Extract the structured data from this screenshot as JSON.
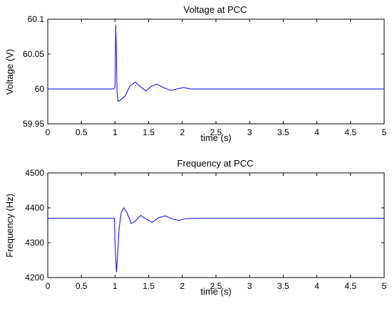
{
  "chart_data": [
    {
      "type": "line",
      "title": "Voltage at PCC",
      "xlabel": "time (s)",
      "ylabel": "Voltage (V)",
      "xlim": [
        0,
        5
      ],
      "ylim": [
        59.95,
        60.1
      ],
      "xticks": [
        "0",
        "0.5",
        "1",
        "1.5",
        "2",
        "2.5",
        "3",
        "3.5",
        "4",
        "4.5",
        "5"
      ],
      "yticks": [
        "59.95",
        "60",
        "60.05",
        "60.1"
      ],
      "grid": false,
      "legend": "none",
      "series": [
        {
          "color": "#0000ff",
          "x": [
            0,
            0.2,
            0.4,
            0.6,
            0.8,
            0.98,
            1.0,
            1.01,
            1.02,
            1.03,
            1.045,
            1.08,
            1.15,
            1.22,
            1.3,
            1.38,
            1.46,
            1.54,
            1.62,
            1.72,
            1.82,
            1.92,
            2.02,
            2.12,
            2.25,
            2.5,
            3.0,
            3.5,
            4.0,
            4.5,
            5.0
          ],
          "y": [
            60.0,
            60.0,
            60.0,
            60.0,
            60.0,
            60.0,
            60.003,
            60.092,
            60.05,
            59.995,
            59.982,
            59.984,
            59.99,
            60.004,
            60.01,
            60.003,
            59.997,
            60.004,
            60.007,
            60.002,
            59.998,
            60.0,
            60.002,
            60.0,
            60.0,
            60.0,
            60.0,
            60.0,
            60.0,
            60.0,
            60.0
          ]
        }
      ]
    },
    {
      "type": "line",
      "title": "Frequency at PCC",
      "xlabel": "time (s)",
      "ylabel": "Frequency (Hz)",
      "xlim": [
        0,
        5
      ],
      "ylim": [
        4200,
        4500
      ],
      "xticks": [
        "0",
        "0.5",
        "1",
        "1.5",
        "2",
        "2.5",
        "3",
        "3.5",
        "4",
        "4.5",
        "5"
      ],
      "yticks": [
        "4200",
        "4300",
        "4400",
        "4500"
      ],
      "grid": false,
      "legend": "none",
      "series": [
        {
          "color": "#0000ff",
          "x": [
            0,
            0.5,
            0.99,
            1.0,
            1.02,
            1.04,
            1.06,
            1.09,
            1.13,
            1.18,
            1.24,
            1.3,
            1.38,
            1.46,
            1.55,
            1.65,
            1.75,
            1.85,
            1.95,
            2.05,
            2.2,
            2.5,
            3.0,
            3.5,
            4.0,
            4.5,
            5.0
          ],
          "y": [
            4370,
            4370,
            4370,
            4300,
            4215,
            4270,
            4340,
            4385,
            4400,
            4385,
            4355,
            4362,
            4378,
            4368,
            4358,
            4372,
            4377,
            4368,
            4364,
            4369,
            4370,
            4370,
            4370,
            4370,
            4370,
            4370,
            4370
          ]
        }
      ]
    }
  ]
}
